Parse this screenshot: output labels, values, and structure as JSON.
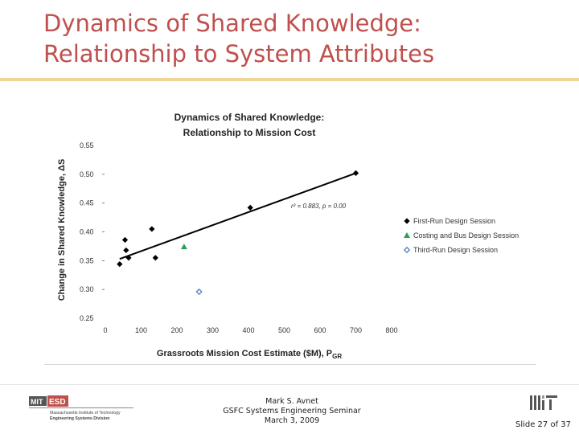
{
  "slide": {
    "title_line1": "Dynamics of Shared Knowledge:",
    "title_line2": "Relationship to System Attributes"
  },
  "chart_data": {
    "type": "scatter",
    "title_line1": "Dynamics of Shared Knowledge:",
    "title_line2": "Relationship to Mission Cost",
    "xlabel": "Grassroots Mission Cost Estimate ($M), P",
    "xlabel_sub": "GR",
    "ylabel": "Change in Shared Knowledge, ΔS",
    "xlim": [
      0,
      800
    ],
    "ylim": [
      0.25,
      0.55
    ],
    "x_ticks": [
      0,
      100,
      200,
      300,
      400,
      500,
      600,
      700,
      800
    ],
    "y_ticks": [
      0.25,
      0.3,
      0.35,
      0.4,
      0.45,
      0.5,
      0.55
    ],
    "x_tick_labels": [
      "0",
      "100",
      "200",
      "300",
      "400",
      "500",
      "600",
      "700",
      "800"
    ],
    "y_tick_labels": [
      "0.25",
      "0.30",
      "0.35",
      "0.40",
      "0.45",
      "0.50",
      "0.55"
    ],
    "annotation": "r² = 0.883, p = 0.00",
    "legend_position": "right",
    "series": [
      {
        "name": "First-Run Design Session",
        "marker": "diamond",
        "color": "#000000",
        "points": [
          [
            40,
            0.344
          ],
          [
            55,
            0.386
          ],
          [
            58,
            0.368
          ],
          [
            65,
            0.355
          ],
          [
            130,
            0.405
          ],
          [
            140,
            0.355
          ],
          [
            405,
            0.442
          ],
          [
            700,
            0.502
          ]
        ]
      },
      {
        "name": "Costing and Bus Design Session",
        "marker": "triangle",
        "color": "#2ca05a",
        "points": [
          [
            220,
            0.374
          ]
        ]
      },
      {
        "name": "Third-Run Design Session",
        "marker": "diamond-open",
        "color": "#4f81bd",
        "points": [
          [
            262,
            0.296
          ]
        ]
      }
    ],
    "trendline": {
      "x_start": 40,
      "y_start": 0.353,
      "x_end": 700,
      "y_end": 0.502
    }
  },
  "footer": {
    "logo_mit": "MIT",
    "logo_esd": "ESD",
    "logo_line1": "Massachusetts Institute of Technology",
    "logo_line2": "Engineering Systems Division",
    "presenter": "Mark S. Avnet",
    "event": "GSFC Systems Engineering Seminar",
    "date": "March 3, 2009",
    "slide_number": "Slide 27 of 37"
  }
}
